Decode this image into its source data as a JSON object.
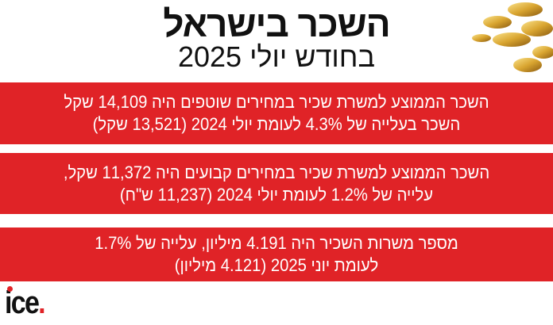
{
  "header": {
    "title": "השכר בישראל",
    "subtitle": "בחודש יולי 2025"
  },
  "boxes": [
    {
      "line1": "השכר הממוצע למשרת שכיר במחירים שוטפים היה 14,109 שקל",
      "line2": "השכר בעלייה של 4.3% לעומת יולי 2024 (13,521 שקל)"
    },
    {
      "line1": "השכר הממוצע למשרת שכיר במחירים קבועים היה 11,372 שקל,",
      "line2": "עלייה של 1.2% לעומת יולי 2024 (11,237 ש\"ח)"
    },
    {
      "line1": "מספר משרות השכיר היה 4.191 מיליון, עלייה של 1.7%",
      "line2": "לעומת יוני 2025 (4.121 מיליון)"
    }
  ],
  "logo": {
    "text": "ice",
    "dot": "."
  },
  "colors": {
    "accent": "#e02327",
    "text": "#111111"
  }
}
